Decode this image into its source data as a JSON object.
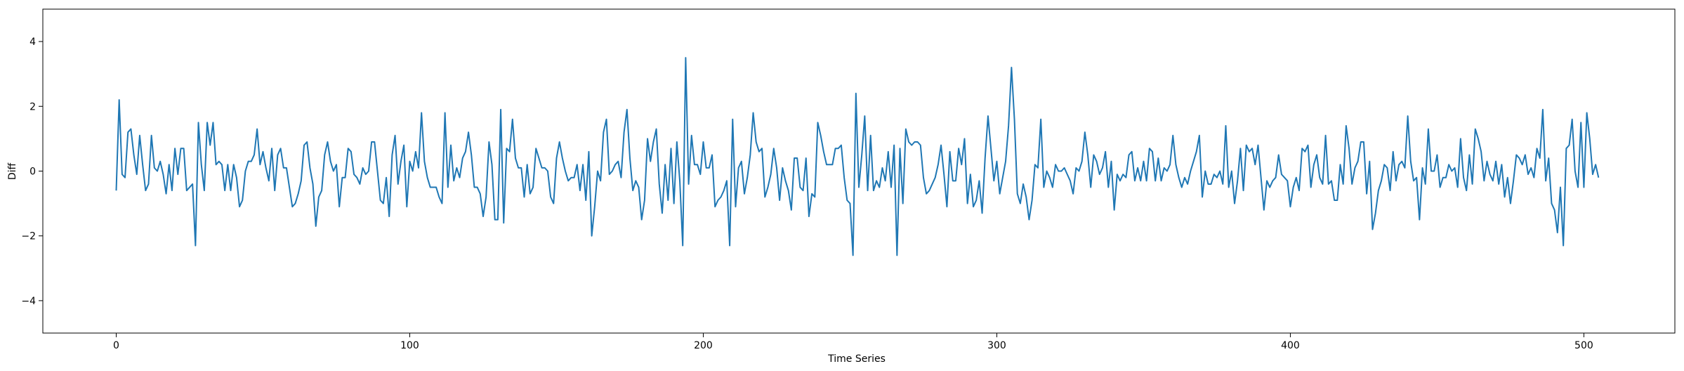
{
  "chart_data": {
    "type": "line",
    "title": "",
    "xlabel": "Time Series",
    "ylabel": "Diff",
    "xlim": [
      -25,
      531
    ],
    "ylim": [
      -5,
      5
    ],
    "xticks": [
      0,
      100,
      200,
      300,
      400,
      500
    ],
    "yticks": [
      -4,
      -2,
      0,
      2,
      4
    ],
    "grid": false,
    "line_color": "#1f77b4",
    "series": [
      {
        "x_start": 0,
        "x_step": 1,
        "values": [
          -0.6,
          2.2,
          -0.1,
          -0.2,
          1.2,
          1.3,
          0.5,
          -0.1,
          1.1,
          0.2,
          -0.6,
          -0.4,
          1.1,
          0.1,
          0.0,
          0.3,
          -0.1,
          -0.7,
          0.2,
          -0.6,
          0.7,
          -0.1,
          0.7,
          0.7,
          -0.6,
          -0.5,
          -0.4,
          -2.3,
          1.5,
          0.2,
          -0.6,
          1.5,
          0.8,
          1.5,
          0.2,
          0.3,
          0.2,
          -0.6,
          0.2,
          -0.6,
          0.2,
          -0.2,
          -1.1,
          -0.9,
          0.0,
          0.3,
          0.3,
          0.5,
          1.3,
          0.2,
          0.6,
          0.1,
          -0.3,
          0.7,
          -0.6,
          0.5,
          0.7,
          0.1,
          0.1,
          -0.5,
          -1.1,
          -1.0,
          -0.7,
          -0.3,
          0.8,
          0.9,
          0.1,
          -0.4,
          -1.7,
          -0.8,
          -0.6,
          0.5,
          0.9,
          0.3,
          0.0,
          0.2,
          -1.1,
          -0.2,
          -0.2,
          0.7,
          0.6,
          -0.1,
          -0.2,
          -0.4,
          0.1,
          -0.1,
          0.0,
          0.9,
          0.9,
          0.0,
          -0.9,
          -1.0,
          -0.2,
          -1.4,
          0.5,
          1.1,
          -0.4,
          0.3,
          0.8,
          -1.1,
          0.3,
          0.0,
          0.6,
          0.1,
          1.8,
          0.3,
          -0.2,
          -0.5,
          -0.5,
          -0.5,
          -0.8,
          -1.0,
          1.8,
          -0.5,
          0.8,
          -0.3,
          0.1,
          -0.2,
          0.4,
          0.6,
          1.2,
          0.5,
          -0.5,
          -0.5,
          -0.7,
          -1.4,
          -0.8,
          0.9,
          0.2,
          -1.5,
          -1.5,
          1.9,
          -1.6,
          0.7,
          0.6,
          1.6,
          0.4,
          0.1,
          0.1,
          -0.8,
          0.2,
          -0.7,
          -0.5,
          0.7,
          0.4,
          0.1,
          0.1,
          0.0,
          -0.8,
          -1.0,
          0.4,
          0.9,
          0.4,
          0.0,
          -0.3,
          -0.2,
          -0.2,
          0.2,
          -0.6,
          0.2,
          -0.9,
          0.6,
          -2.0,
          -1.1,
          0.0,
          -0.3,
          1.2,
          1.6,
          -0.1,
          0.0,
          0.2,
          0.3,
          -0.2,
          1.2,
          1.9,
          0.4,
          -0.6,
          -0.3,
          -0.5,
          -1.5,
          -0.9,
          1.0,
          0.3,
          0.9,
          1.3,
          -0.4,
          -1.3,
          0.2,
          -0.9,
          0.7,
          -1.0,
          0.9,
          -0.3,
          -2.3,
          3.5,
          -0.4,
          1.1,
          0.2,
          0.2,
          -0.1,
          0.9,
          0.1,
          0.1,
          0.5,
          -1.1,
          -0.9,
          -0.8,
          -0.6,
          -0.3,
          -2.3,
          1.6,
          -1.1,
          0.1,
          0.3,
          -0.7,
          -0.2,
          0.5,
          1.8,
          0.9,
          0.6,
          0.7,
          -0.8,
          -0.5,
          -0.1,
          0.7,
          0.1,
          -0.9,
          0.1,
          -0.3,
          -0.6,
          -1.2,
          0.4,
          0.4,
          -0.5,
          -0.6,
          0.4,
          -1.4,
          -0.7,
          -0.8,
          1.5,
          1.1,
          0.6,
          0.2,
          0.2,
          0.2,
          0.7,
          0.7,
          0.8,
          -0.2,
          -0.9,
          -1.0,
          -2.6,
          2.4,
          -0.5,
          0.5,
          1.7,
          -0.6,
          1.1,
          -0.6,
          -0.3,
          -0.5,
          0.1,
          -0.3,
          0.6,
          -0.5,
          0.8,
          -2.6,
          0.7,
          -1.0,
          1.3,
          0.9,
          0.8,
          0.9,
          0.9,
          0.8,
          -0.2,
          -0.7,
          -0.6,
          -0.4,
          -0.2,
          0.2,
          0.8,
          -0.1,
          -1.1,
          0.6,
          -0.3,
          -0.3,
          0.7,
          0.2,
          1.0,
          -1.0,
          -0.1,
          -1.1,
          -0.9,
          -0.3,
          -1.3,
          0.4,
          1.7,
          0.7,
          -0.3,
          0.3,
          -0.7,
          -0.2,
          0.3,
          1.4,
          3.2,
          1.6,
          -0.7,
          -1.0,
          -0.4,
          -0.8,
          -1.5,
          -0.9,
          0.2,
          0.1,
          1.6,
          -0.5,
          0.0,
          -0.2,
          -0.5,
          0.2,
          0.0,
          0.0,
          0.1,
          -0.1,
          -0.3,
          -0.7,
          0.1,
          0.0,
          0.3,
          1.2,
          0.5,
          -0.5,
          0.5,
          0.3,
          -0.1,
          0.1,
          0.6,
          -0.5,
          0.3,
          -1.2,
          -0.1,
          -0.3,
          -0.1,
          -0.2,
          0.5,
          0.6,
          -0.3,
          0.1,
          -0.3,
          0.3,
          -0.3,
          0.7,
          0.6,
          -0.3,
          0.4,
          -0.3,
          0.1,
          0.0,
          0.2,
          1.1,
          0.2,
          -0.2,
          -0.5,
          -0.2,
          -0.4,
          0.0,
          0.3,
          0.6,
          1.1,
          -0.8,
          0.0,
          -0.4,
          -0.4,
          -0.1,
          -0.2,
          0.0,
          -0.4,
          1.4,
          -0.5,
          0.0,
          -1.0,
          -0.3,
          0.7,
          -0.6,
          0.8,
          0.6,
          0.7,
          0.2,
          0.8,
          -0.2,
          -1.2,
          -0.3,
          -0.5,
          -0.3,
          -0.2,
          0.5,
          -0.1,
          -0.2,
          -0.3,
          -1.1,
          -0.5,
          -0.2,
          -0.6,
          0.7,
          0.6,
          0.8,
          -0.5,
          0.2,
          0.5,
          -0.2,
          -0.4,
          1.1,
          -0.4,
          -0.3,
          -0.9,
          -0.9,
          0.2,
          -0.4,
          1.4,
          0.7,
          -0.4,
          0.1,
          0.3,
          0.9,
          0.9,
          -0.7,
          0.3,
          -1.8,
          -1.3,
          -0.6,
          -0.3,
          0.2,
          0.1,
          -0.6,
          0.6,
          -0.3,
          0.2,
          0.3,
          0.1,
          1.7,
          0.3,
          -0.3,
          -0.2,
          -1.5,
          0.1,
          -0.4,
          1.3,
          0.0,
          0.0,
          0.5,
          -0.5,
          -0.2,
          -0.2,
          0.2,
          0.0,
          0.1,
          -0.5,
          1.0,
          -0.2,
          -0.6,
          0.5,
          -0.4,
          1.3,
          1.0,
          0.6,
          -0.3,
          0.3,
          -0.1,
          -0.3,
          0.3,
          -0.4,
          0.2,
          -0.8,
          -0.2,
          -1.0,
          -0.3,
          0.5,
          0.4,
          0.2,
          0.5,
          -0.1,
          0.1,
          -0.2,
          0.7,
          0.4,
          1.9,
          -0.3,
          0.4,
          -1.0,
          -1.2,
          -1.9,
          -0.5,
          -2.3,
          0.7,
          0.8,
          1.6,
          0.0,
          -0.5,
          1.5,
          -0.5,
          1.8,
          1.0,
          -0.1,
          0.2,
          -0.2
        ]
      }
    ]
  }
}
